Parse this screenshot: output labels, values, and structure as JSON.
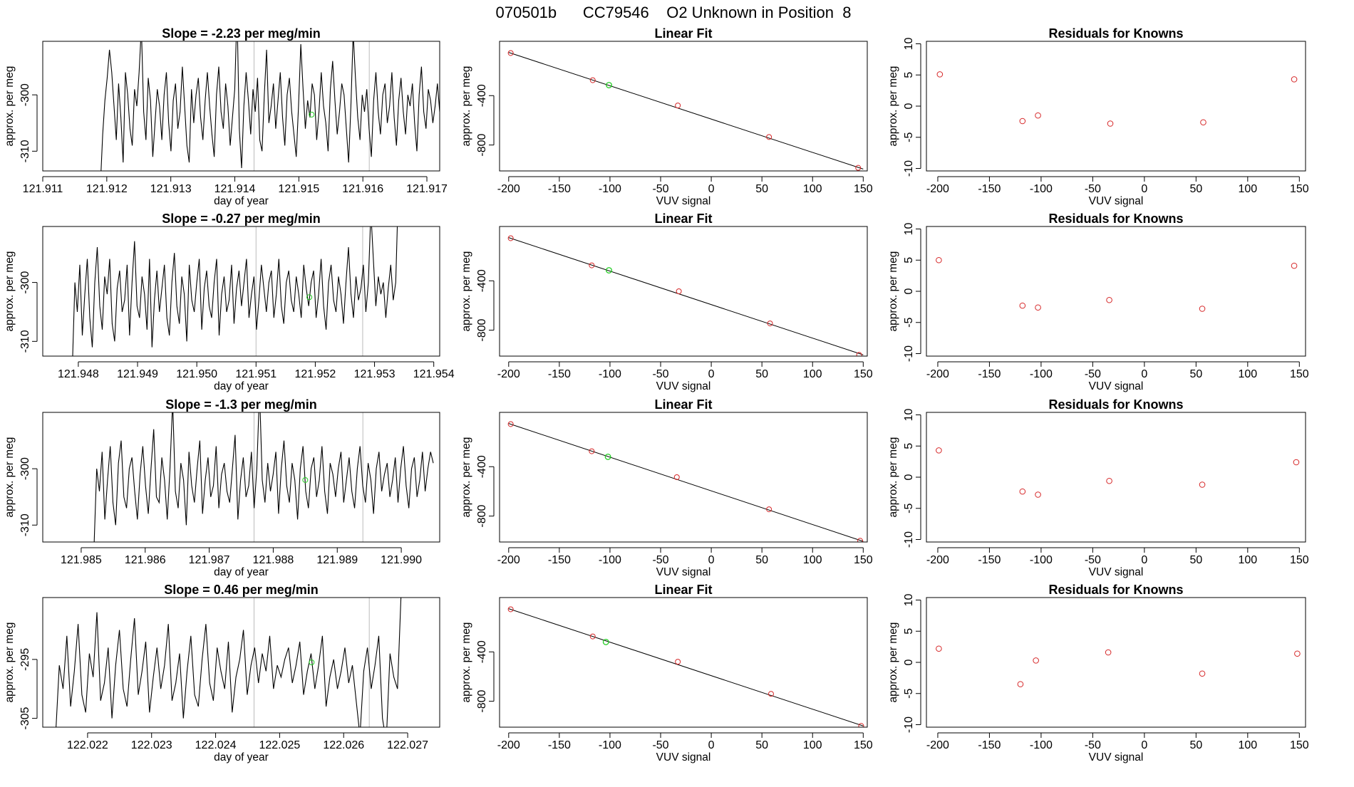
{
  "suptitle": "070501b      CC79546    O2 Unknown in Position  8",
  "colors": {
    "line": "#000000",
    "known": "#d62728",
    "unknown": "#22cc22",
    "vline": "#bbbbbb"
  },
  "chart_data": [
    {
      "type": "line",
      "panel": "timeseries",
      "row": 0,
      "title": "Slope =  -2.23  per meg/min",
      "xlabel": "day of year",
      "ylabel": "approx. per meg",
      "xlim": [
        121.911,
        121.9172
      ],
      "ylim": [
        -313.5,
        -290.5
      ],
      "xticks": [
        "121.911",
        "121.912",
        "121.913",
        "121.914",
        "121.915",
        "121.916",
        "121.917"
      ],
      "yticks": [
        -310,
        -300
      ],
      "vlines": [
        121.9143,
        121.9161
      ],
      "x_start": 121.9119,
      "x_end": 121.9172,
      "unknown_point": {
        "x": 121.9152,
        "y": -303.5
      },
      "y_values": [
        -316,
        -307,
        -301,
        -297,
        -292,
        -296,
        -302,
        -308,
        -298,
        -304,
        -312,
        -296,
        -300,
        -306,
        -309,
        -299,
        -302,
        -296,
        -288,
        -303,
        -308,
        -297,
        -301,
        -311,
        -305,
        -299,
        -302,
        -308,
        -300,
        -296,
        -305,
        -310,
        -301,
        -298,
        -306,
        -303,
        -295,
        -302,
        -309,
        -312,
        -299,
        -305,
        -300,
        -297,
        -304,
        -308,
        -301,
        -296,
        -302,
        -307,
        -311,
        -300,
        -295,
        -303,
        -306,
        -298,
        -302,
        -309,
        -304,
        -299,
        -285,
        -306,
        -313,
        -302,
        -296,
        -301,
        -307,
        -299,
        -303,
        -297,
        -308,
        -310,
        -300,
        -292,
        -305,
        -302,
        -298,
        -306,
        -301,
        -296,
        -304,
        -309,
        -300,
        -297,
        -303,
        -307,
        -311,
        -302,
        -291,
        -299,
        -306,
        -301,
        -304,
        -298,
        -300,
        -308,
        -303,
        -296,
        -302,
        -305,
        -310,
        -299,
        -294,
        -301,
        -307,
        -303,
        -298,
        -300,
        -306,
        -312,
        -302,
        -289,
        -297,
        -304,
        -308,
        -300,
        -303,
        -299,
        -306,
        -311,
        -301,
        -296,
        -303,
        -307,
        -300,
        -298,
        -305,
        -302,
        -296,
        -304,
        -309,
        -301,
        -297,
        -303,
        -307,
        -300,
        -302,
        -298,
        -305,
        -310,
        -300,
        -295,
        -303,
        -306,
        -299,
        -301,
        -305,
        -302,
        -298,
        -303
      ],
      "seed": 11
    },
    {
      "type": "line",
      "panel": "timeseries",
      "row": 1,
      "title": "Slope =  -0.27  per meg/min",
      "xlabel": "day of year",
      "ylabel": "approx. per meg",
      "xlim": [
        121.9474,
        121.9541
      ],
      "ylim": [
        -312.5,
        -290.5
      ],
      "xticks": [
        "121.948",
        "121.949",
        "121.950",
        "121.951",
        "121.952",
        "121.953",
        "121.954"
      ],
      "yticks": [
        -310,
        -300
      ],
      "vlines": [
        121.951,
        121.9528
      ],
      "x_start": 121.9479,
      "x_end": 121.9534,
      "unknown_point": {
        "x": 121.9519,
        "y": -302.5
      },
      "y_values": [
        -314,
        -300,
        -305,
        -297,
        -309,
        -302,
        -296,
        -306,
        -311,
        -300,
        -294,
        -304,
        -308,
        -299,
        -302,
        -296,
        -307,
        -310,
        -301,
        -298,
        -305,
        -303,
        -297,
        -309,
        -300,
        -293,
        -304,
        -306,
        -299,
        -302,
        -308,
        -296,
        -311,
        -303,
        -298,
        -305,
        -301,
        -297,
        -306,
        -309,
        -300,
        -295,
        -304,
        -307,
        -299,
        -302,
        -310,
        -297,
        -303,
        -305,
        -300,
        -296,
        -308,
        -301,
        -298,
        -304,
        -306,
        -300,
        -296,
        -309,
        -302,
        -299,
        -305,
        -303,
        -297,
        -307,
        -301,
        -298,
        -304,
        -300,
        -296,
        -306,
        -302,
        -299,
        -308,
        -303,
        -297,
        -301,
        -305,
        -300,
        -298,
        -306,
        -302,
        -296,
        -304,
        -307,
        -300,
        -298,
        -303,
        -305,
        -299,
        -302,
        -306,
        -297,
        -301,
        -304,
        -300,
        -298,
        -306,
        -302,
        -296,
        -304,
        -308,
        -300,
        -297,
        -303,
        -305,
        -299,
        -302,
        -307,
        -300,
        -294,
        -302,
        -306,
        -299,
        -303,
        -301,
        -297,
        -305,
        -300,
        -288,
        -296,
        -304,
        -299,
        -302,
        -300,
        -306,
        -301,
        -297,
        -303,
        -300,
        -285
      ],
      "seed": 23
    },
    {
      "type": "line",
      "panel": "timeseries",
      "row": 2,
      "title": "Slope =  -1.3  per meg/min",
      "xlabel": "day of year",
      "ylabel": "approx. per meg",
      "xlim": [
        121.9844,
        121.9906
      ],
      "ylim": [
        -313,
        -290
      ],
      "xticks": [
        "121.985",
        "121.986",
        "121.987",
        "121.988",
        "121.989",
        "121.990"
      ],
      "yticks": [
        -310,
        -300
      ],
      "vlines": [
        121.9877,
        121.9894
      ],
      "x_start": 121.9852,
      "x_end": 121.9905,
      "unknown_point": {
        "x": 121.9885,
        "y": -302
      },
      "y_values": [
        -314,
        -300,
        -304,
        -297,
        -309,
        -302,
        -296,
        -306,
        -310,
        -299,
        -295,
        -305,
        -307,
        -300,
        -298,
        -304,
        -309,
        -301,
        -296,
        -303,
        -308,
        -300,
        -293,
        -305,
        -306,
        -298,
        -302,
        -309,
        -300,
        -288,
        -304,
        -307,
        -299,
        -302,
        -310,
        -297,
        -303,
        -306,
        -300,
        -295,
        -308,
        -302,
        -298,
        -305,
        -303,
        -296,
        -307,
        -301,
        -299,
        -304,
        -306,
        -300,
        -294,
        -309,
        -302,
        -298,
        -305,
        -303,
        -297,
        -307,
        -300,
        -286,
        -302,
        -306,
        -299,
        -304,
        -301,
        -297,
        -308,
        -300,
        -295,
        -303,
        -306,
        -299,
        -302,
        -309,
        -300,
        -296,
        -304,
        -307,
        -300,
        -298,
        -305,
        -302,
        -296,
        -304,
        -308,
        -299,
        -301,
        -305,
        -300,
        -297,
        -306,
        -302,
        -298,
        -304,
        -307,
        -300,
        -296,
        -303,
        -306,
        -299,
        -302,
        -308,
        -300,
        -297,
        -304,
        -301,
        -299,
        -305,
        -302,
        -298,
        -306,
        -300,
        -296,
        -303,
        -307,
        -300,
        -298,
        -305,
        -302,
        -297,
        -304,
        -300,
        -297,
        -299
      ],
      "seed": 37
    },
    {
      "type": "line",
      "panel": "timeseries",
      "row": 3,
      "title": "Slope =  0.46  per meg/min",
      "xlabel": "day of year",
      "ylabel": "approx. per meg",
      "xlim": [
        122.0213,
        122.0275
      ],
      "ylim": [
        -306.5,
        -284.5
      ],
      "xticks": [
        "122.022",
        "122.023",
        "122.024",
        "122.025",
        "122.026",
        "122.027"
      ],
      "yticks": [
        -305,
        -295
      ],
      "vlines": [
        122.0246,
        122.0264
      ],
      "x_start": 122.0215,
      "x_end": 122.0269,
      "unknown_point": {
        "x": 122.0255,
        "y": -295.5
      },
      "y_values": [
        -308,
        -296,
        -300,
        -291,
        -303,
        -297,
        -289,
        -301,
        -304,
        -294,
        -298,
        -287,
        -302,
        -299,
        -293,
        -305,
        -296,
        -290,
        -300,
        -303,
        -295,
        -288,
        -301,
        -297,
        -292,
        -304,
        -298,
        -293,
        -300,
        -296,
        -289,
        -302,
        -299,
        -294,
        -305,
        -297,
        -291,
        -301,
        -303,
        -295,
        -289,
        -299,
        -302,
        -293,
        -297,
        -300,
        -292,
        -304,
        -298,
        -295,
        -290,
        -301,
        -296,
        -293,
        -299,
        -294,
        -297,
        -291,
        -300,
        -296,
        -298,
        -295,
        -293,
        -299,
        -296,
        -292,
        -301,
        -297,
        -294,
        -300,
        -296,
        -291,
        -303,
        -298,
        -295,
        -300,
        -297,
        -293,
        -299,
        -296,
        -302,
        -308,
        -297,
        -293,
        -300,
        -296,
        -291,
        -305,
        -309,
        -294,
        -298,
        -300,
        -283
      ],
      "seed": 53
    },
    {
      "type": "scatter",
      "panel": "linearfit",
      "row": 0,
      "title": "Linear Fit",
      "xlabel": "VUV signal",
      "ylabel": "approx. per meg",
      "xlim": [
        -209,
        154
      ],
      "ylim": [
        -1010,
        40
      ],
      "xticks": [
        -200,
        -150,
        -100,
        -50,
        0,
        50,
        100,
        150
      ],
      "yticks": [
        -800,
        -400
      ],
      "known": [
        {
          "x": -198,
          "y": -55
        },
        {
          "x": -117,
          "y": -275
        },
        {
          "x": -33,
          "y": -480
        },
        {
          "x": 57,
          "y": -735
        },
        {
          "x": 145,
          "y": -985
        }
      ],
      "unknown": [
        {
          "x": -101,
          "y": -315
        }
      ],
      "fit_line": {
        "x0": -200,
        "y0": -50,
        "x1": 150,
        "y1": -995
      }
    },
    {
      "type": "scatter",
      "panel": "linearfit",
      "row": 1,
      "title": "Linear Fit",
      "xlabel": "VUV signal",
      "ylabel": "approx. per meg",
      "xlim": [
        -209,
        154
      ],
      "ylim": [
        -1010,
        40
      ],
      "xticks": [
        -200,
        -150,
        -100,
        -50,
        0,
        50,
        100,
        150
      ],
      "yticks": [
        -800,
        -400
      ],
      "known": [
        {
          "x": -198,
          "y": -55
        },
        {
          "x": -118,
          "y": -275
        },
        {
          "x": -32,
          "y": -485
        },
        {
          "x": 58,
          "y": -745
        },
        {
          "x": 146,
          "y": -1000
        }
      ],
      "unknown": [
        {
          "x": -101,
          "y": -315
        }
      ],
      "fit_line": {
        "x0": -200,
        "y0": -50,
        "x1": 150,
        "y1": -1000
      }
    },
    {
      "type": "scatter",
      "panel": "linearfit",
      "row": 2,
      "title": "Linear Fit",
      "xlabel": "VUV signal",
      "ylabel": "approx. per meg",
      "xlim": [
        -209,
        154
      ],
      "ylim": [
        -1010,
        40
      ],
      "xticks": [
        -200,
        -150,
        -100,
        -50,
        0,
        50,
        100,
        150
      ],
      "yticks": [
        -800,
        -400
      ],
      "known": [
        {
          "x": -198,
          "y": -55
        },
        {
          "x": -118,
          "y": -275
        },
        {
          "x": -34,
          "y": -485
        },
        {
          "x": 57,
          "y": -745
        },
        {
          "x": 147,
          "y": -1000
        }
      ],
      "unknown": [
        {
          "x": -102,
          "y": -320
        }
      ],
      "fit_line": {
        "x0": -200,
        "y0": -50,
        "x1": 150,
        "y1": -1005
      }
    },
    {
      "type": "scatter",
      "panel": "linearfit",
      "row": 3,
      "title": "Linear Fit",
      "xlabel": "VUV signal",
      "ylabel": "approx. per meg",
      "xlim": [
        -209,
        154
      ],
      "ylim": [
        -1010,
        40
      ],
      "xticks": [
        -200,
        -150,
        -100,
        -50,
        0,
        50,
        100,
        150
      ],
      "yticks": [
        -800,
        -400
      ],
      "known": [
        {
          "x": -198,
          "y": -55
        },
        {
          "x": -117,
          "y": -275
        },
        {
          "x": -33,
          "y": -480
        },
        {
          "x": 59,
          "y": -740
        },
        {
          "x": 148,
          "y": -1000
        }
      ],
      "unknown": [
        {
          "x": -104,
          "y": -320
        }
      ],
      "fit_line": {
        "x0": -200,
        "y0": -50,
        "x1": 150,
        "y1": -1000
      }
    },
    {
      "type": "scatter",
      "panel": "residuals",
      "row": 0,
      "title": "Residuals for Knowns",
      "xlabel": "VUV signal",
      "ylabel": "approx. per meg",
      "xlim": [
        -211,
        156
      ],
      "ylim": [
        -10.4,
        10.4
      ],
      "xticks": [
        -200,
        -150,
        -100,
        -50,
        0,
        50,
        100,
        150
      ],
      "yticks": [
        -10,
        -5,
        0,
        5,
        10
      ],
      "known": [
        {
          "x": -198,
          "y": 5.1
        },
        {
          "x": -118,
          "y": -2.4
        },
        {
          "x": -103,
          "y": -1.5
        },
        {
          "x": -33,
          "y": -2.8
        },
        {
          "x": 57,
          "y": -2.6
        },
        {
          "x": 145,
          "y": 4.3
        }
      ]
    },
    {
      "type": "scatter",
      "panel": "residuals",
      "row": 1,
      "title": "Residuals for Knowns",
      "xlabel": "VUV signal",
      "ylabel": "approx. per meg",
      "xlim": [
        -211,
        156
      ],
      "ylim": [
        -10.4,
        10.4
      ],
      "xticks": [
        -200,
        -150,
        -100,
        -50,
        0,
        50,
        100,
        150
      ],
      "yticks": [
        -10,
        -5,
        0,
        5,
        10
      ],
      "known": [
        {
          "x": -199,
          "y": 5.0
        },
        {
          "x": -118,
          "y": -2.3
        },
        {
          "x": -103,
          "y": -2.6
        },
        {
          "x": -34,
          "y": -1.4
        },
        {
          "x": 56,
          "y": -2.8
        },
        {
          "x": 145,
          "y": 4.1
        }
      ]
    },
    {
      "type": "scatter",
      "panel": "residuals",
      "row": 2,
      "title": "Residuals for Knowns",
      "xlabel": "VUV signal",
      "ylabel": "approx. per meg",
      "xlim": [
        -211,
        156
      ],
      "ylim": [
        -10.4,
        10.4
      ],
      "xticks": [
        -200,
        -150,
        -100,
        -50,
        0,
        50,
        100,
        150
      ],
      "yticks": [
        -10,
        -5,
        0,
        5,
        10
      ],
      "known": [
        {
          "x": -199,
          "y": 4.3
        },
        {
          "x": -118,
          "y": -2.3
        },
        {
          "x": -103,
          "y": -2.8
        },
        {
          "x": -34,
          "y": -0.6
        },
        {
          "x": 56,
          "y": -1.2
        },
        {
          "x": 147,
          "y": 2.4
        }
      ]
    },
    {
      "type": "scatter",
      "panel": "residuals",
      "row": 3,
      "title": "Residuals for Knowns",
      "xlabel": "VUV signal",
      "ylabel": "approx. per meg",
      "xlim": [
        -211,
        156
      ],
      "ylim": [
        -10.4,
        10.4
      ],
      "xticks": [
        -200,
        -150,
        -100,
        -50,
        0,
        50,
        100,
        150
      ],
      "yticks": [
        -10,
        -5,
        0,
        5,
        10
      ],
      "known": [
        {
          "x": -199,
          "y": 2.2
        },
        {
          "x": -120,
          "y": -3.5
        },
        {
          "x": -105,
          "y": 0.3
        },
        {
          "x": -35,
          "y": 1.6
        },
        {
          "x": 56,
          "y": -1.8
        },
        {
          "x": 148,
          "y": 1.4
        }
      ]
    }
  ]
}
